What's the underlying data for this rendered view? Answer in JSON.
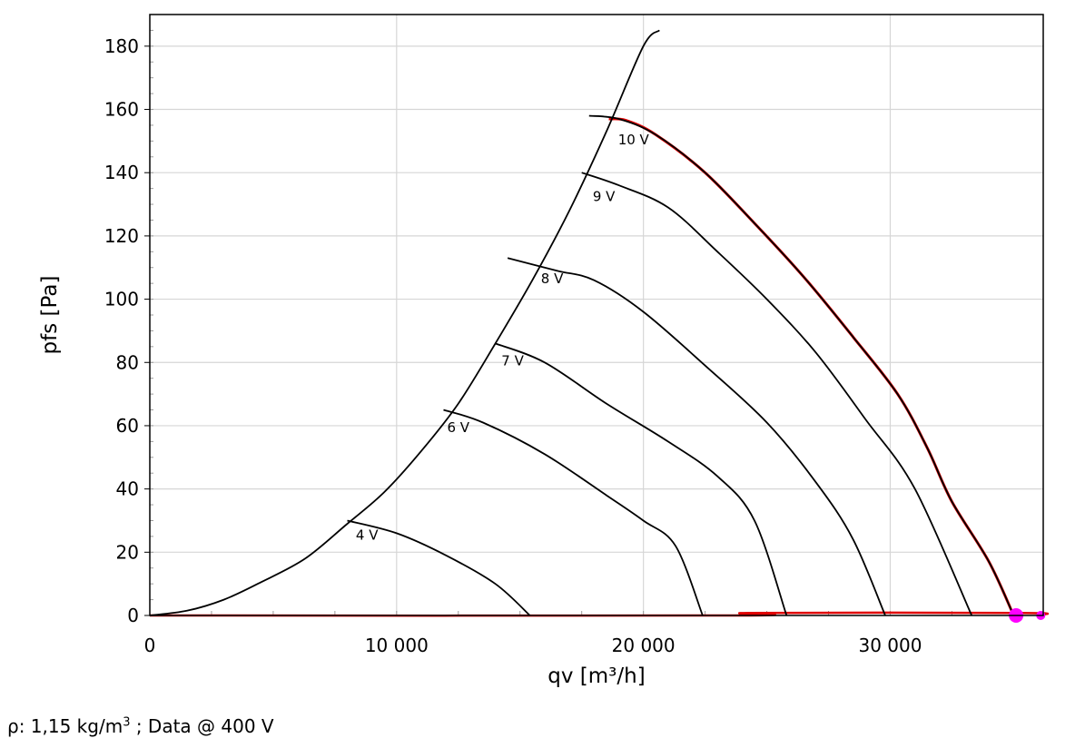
{
  "chart_data": {
    "type": "line",
    "xlabel": "qv [m³/h]",
    "ylabel": "pfs [Pa]",
    "xlim": [
      0,
      36200
    ],
    "ylim": [
      0,
      190
    ],
    "x_ticks": [
      0,
      10000,
      20000,
      30000
    ],
    "x_tick_labels": [
      "0",
      "10 000",
      "20 000",
      "30 000"
    ],
    "y_ticks": [
      0,
      20,
      40,
      60,
      80,
      100,
      120,
      140,
      160,
      180
    ],
    "y_tick_labels": [
      "0",
      "20",
      "40",
      "60",
      "80",
      "100",
      "120",
      "140",
      "160",
      "180"
    ],
    "grid": true,
    "series": [
      {
        "name": "4 V",
        "x": [
          8000,
          10000,
          12000,
          14000,
          15400
        ],
        "y": [
          30,
          26,
          19,
          10,
          0
        ]
      },
      {
        "name": "6 V",
        "x": [
          11900,
          13500,
          16000,
          18500,
          20000,
          21300,
          22400
        ],
        "y": [
          65,
          61,
          51,
          38,
          30,
          22,
          0
        ]
      },
      {
        "name": "7 V",
        "x": [
          14000,
          16000,
          18500,
          21000,
          23000,
          24500,
          25800
        ],
        "y": [
          86,
          80,
          67,
          55,
          44,
          30,
          0
        ]
      },
      {
        "name": "8 V",
        "x": [
          14500,
          16500,
          18000,
          20000,
          22500,
          25000,
          27000,
          28500,
          29800
        ],
        "y": [
          113,
          109,
          106,
          96,
          79,
          61,
          42,
          24,
          0
        ]
      },
      {
        "name": "9 V",
        "x": [
          17500,
          19000,
          21000,
          23000,
          25000,
          27000,
          29000,
          31000,
          33300
        ],
        "y": [
          140,
          136,
          129,
          115,
          100,
          83,
          62,
          40,
          0
        ]
      },
      {
        "name": "10 V",
        "x": [
          17800,
          19000,
          20500,
          22500,
          24500,
          26500,
          28500,
          30300,
          31500,
          32500,
          34000,
          35000
        ],
        "y": [
          158,
          157,
          152,
          140,
          124,
          107,
          88,
          70,
          53,
          36,
          17,
          0
        ]
      },
      {
        "x": [
          0,
          1500,
          3000,
          4500,
          6300,
          8000,
          9500,
          11000,
          12500,
          14000,
          15500,
          17000,
          18500,
          20000,
          20650
        ],
        "y": [
          0,
          1.5,
          5,
          10.5,
          18,
          29,
          39,
          52,
          67,
          86,
          106,
          128,
          153,
          180,
          185
        ]
      }
    ],
    "highlight_curve": {
      "color": "#e00000",
      "x": [
        18600,
        19300,
        20500,
        22500,
        24500,
        26500,
        28500,
        30300,
        31500,
        32500,
        34000,
        35000
      ],
      "y": [
        157,
        156.5,
        152,
        140,
        124,
        107,
        88,
        70,
        53,
        36,
        17,
        0
      ]
    },
    "baseline": {
      "color": "#e00000",
      "x": [
        0,
        23800,
        24300,
        35200,
        36200
      ],
      "y": [
        0,
        0,
        0.8,
        0.8,
        0.3
      ]
    },
    "markers": [
      {
        "x": 35100,
        "y": 0,
        "color": "#ff00ff"
      },
      {
        "x": 36100,
        "y": 0,
        "color": "#ff00ff"
      }
    ]
  },
  "footnote": {
    "prefix": "ρ: 1,15 kg/m",
    "sup": "3",
    "suffix": " ; Data @ 400 V"
  }
}
